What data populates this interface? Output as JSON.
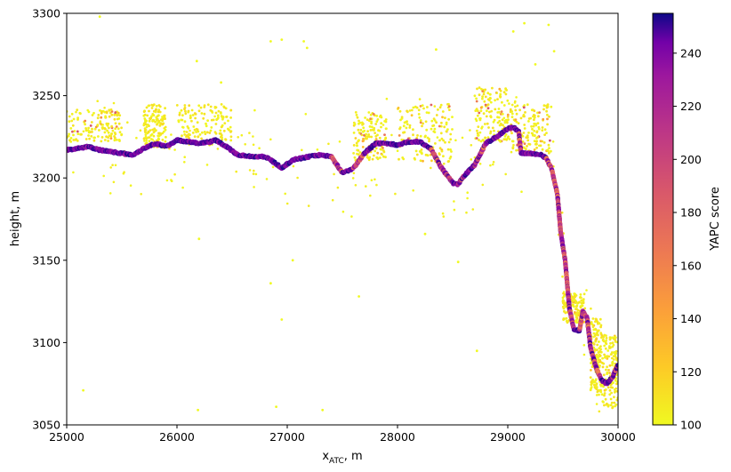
{
  "chart_data": {
    "type": "scatter",
    "xlabel_main": "x",
    "xlabel_sub": "ATC",
    "xlabel_suffix": ", m",
    "ylabel": "height, m",
    "colorbar_label": "YAPC score",
    "xlim": [
      25000,
      30000
    ],
    "ylim": [
      3050,
      3300
    ],
    "xticks": [
      25000,
      26000,
      27000,
      28000,
      29000,
      30000
    ],
    "yticks": [
      3050,
      3100,
      3150,
      3200,
      3250,
      3300
    ],
    "cbar_range": [
      100,
      255
    ],
    "cbar_ticks": [
      100,
      120,
      140,
      160,
      180,
      200,
      220,
      240
    ],
    "colormap": "plasma_r",
    "grid": false,
    "surface_profile": [
      [
        25000,
        3217
      ],
      [
        25100,
        3218
      ],
      [
        25200,
        3219
      ],
      [
        25300,
        3217
      ],
      [
        25400,
        3216
      ],
      [
        25500,
        3215
      ],
      [
        25600,
        3214
      ],
      [
        25700,
        3218
      ],
      [
        25800,
        3221
      ],
      [
        25900,
        3219
      ],
      [
        26000,
        3223
      ],
      [
        26100,
        3222
      ],
      [
        26200,
        3221
      ],
      [
        26300,
        3222
      ],
      [
        26350,
        3223
      ],
      [
        26450,
        3219
      ],
      [
        26550,
        3214
      ],
      [
        26700,
        3213
      ],
      [
        26800,
        3213
      ],
      [
        26850,
        3211
      ],
      [
        26950,
        3206
      ],
      [
        27050,
        3211
      ],
      [
        27200,
        3213
      ],
      [
        27300,
        3214
      ],
      [
        27400,
        3213
      ],
      [
        27500,
        3203
      ],
      [
        27600,
        3206
      ],
      [
        27700,
        3215
      ],
      [
        27800,
        3221
      ],
      [
        27900,
        3221
      ],
      [
        28000,
        3220
      ],
      [
        28100,
        3222
      ],
      [
        28200,
        3222
      ],
      [
        28300,
        3218
      ],
      [
        28400,
        3206
      ],
      [
        28500,
        3197
      ],
      [
        28550,
        3196
      ],
      [
        28600,
        3201
      ],
      [
        28700,
        3208
      ],
      [
        28800,
        3221
      ],
      [
        28900,
        3225
      ],
      [
        29000,
        3230
      ],
      [
        29050,
        3231
      ],
      [
        29100,
        3228
      ],
      [
        29120,
        3215
      ],
      [
        29200,
        3215
      ],
      [
        29300,
        3214
      ],
      [
        29350,
        3212
      ],
      [
        29400,
        3205
      ],
      [
        29450,
        3190
      ],
      [
        29480,
        3167
      ],
      [
        29520,
        3150
      ],
      [
        29560,
        3120
      ],
      [
        29600,
        3108
      ],
      [
        29650,
        3107
      ],
      [
        29680,
        3119
      ],
      [
        29720,
        3115
      ],
      [
        29750,
        3097
      ],
      [
        29800,
        3085
      ],
      [
        29850,
        3077
      ],
      [
        29900,
        3075
      ],
      [
        29950,
        3079
      ],
      [
        30000,
        3087
      ]
    ],
    "noise_clusters": [
      {
        "x": [
          25000,
          25500
        ],
        "y": [
          3222,
          3242
        ],
        "score": [
          100,
          180
        ]
      },
      {
        "x": [
          25700,
          25900
        ],
        "y": [
          3218,
          3245
        ],
        "score": [
          100,
          115
        ]
      },
      {
        "x": [
          26000,
          26500
        ],
        "y": [
          3220,
          3245
        ],
        "score": [
          100,
          115
        ]
      },
      {
        "x": [
          27600,
          27900
        ],
        "y": [
          3210,
          3240
        ],
        "score": [
          100,
          170
        ]
      },
      {
        "x": [
          28000,
          28500
        ],
        "y": [
          3210,
          3245
        ],
        "score": [
          100,
          175
        ]
      },
      {
        "x": [
          28700,
          29000
        ],
        "y": [
          3222,
          3255
        ],
        "score": [
          100,
          190
        ]
      },
      {
        "x": [
          29000,
          29400
        ],
        "y": [
          3215,
          3245
        ],
        "score": [
          100,
          185
        ]
      },
      {
        "x": [
          29500,
          29700
        ],
        "y": [
          3112,
          3130
        ],
        "score": [
          100,
          130
        ]
      },
      {
        "x": [
          29750,
          29850
        ],
        "y": [
          3070,
          3115
        ],
        "score": [
          100,
          125
        ]
      },
      {
        "x": [
          29850,
          30000
        ],
        "y": [
          3060,
          3105
        ],
        "score": [
          100,
          125
        ]
      }
    ],
    "outliers": [
      [
        25300,
        3298
      ],
      [
        26180,
        3271
      ],
      [
        26400,
        3258
      ],
      [
        26850,
        3283
      ],
      [
        26950,
        3284
      ],
      [
        27150,
        3283
      ],
      [
        27180,
        3279
      ],
      [
        28350,
        3278
      ],
      [
        29050,
        3289
      ],
      [
        29150,
        3294
      ],
      [
        29250,
        3269
      ],
      [
        29370,
        3293
      ],
      [
        29420,
        3277
      ],
      [
        25150,
        3071
      ],
      [
        26190,
        3059
      ],
      [
        26900,
        3061
      ],
      [
        27320,
        3059
      ],
      [
        28720,
        3095
      ],
      [
        26950,
        3114
      ],
      [
        27650,
        3128
      ],
      [
        26850,
        3136
      ],
      [
        27050,
        3150
      ],
      [
        28550,
        3149
      ],
      [
        26200,
        3163
      ],
      [
        28250,
        3166
      ]
    ]
  }
}
